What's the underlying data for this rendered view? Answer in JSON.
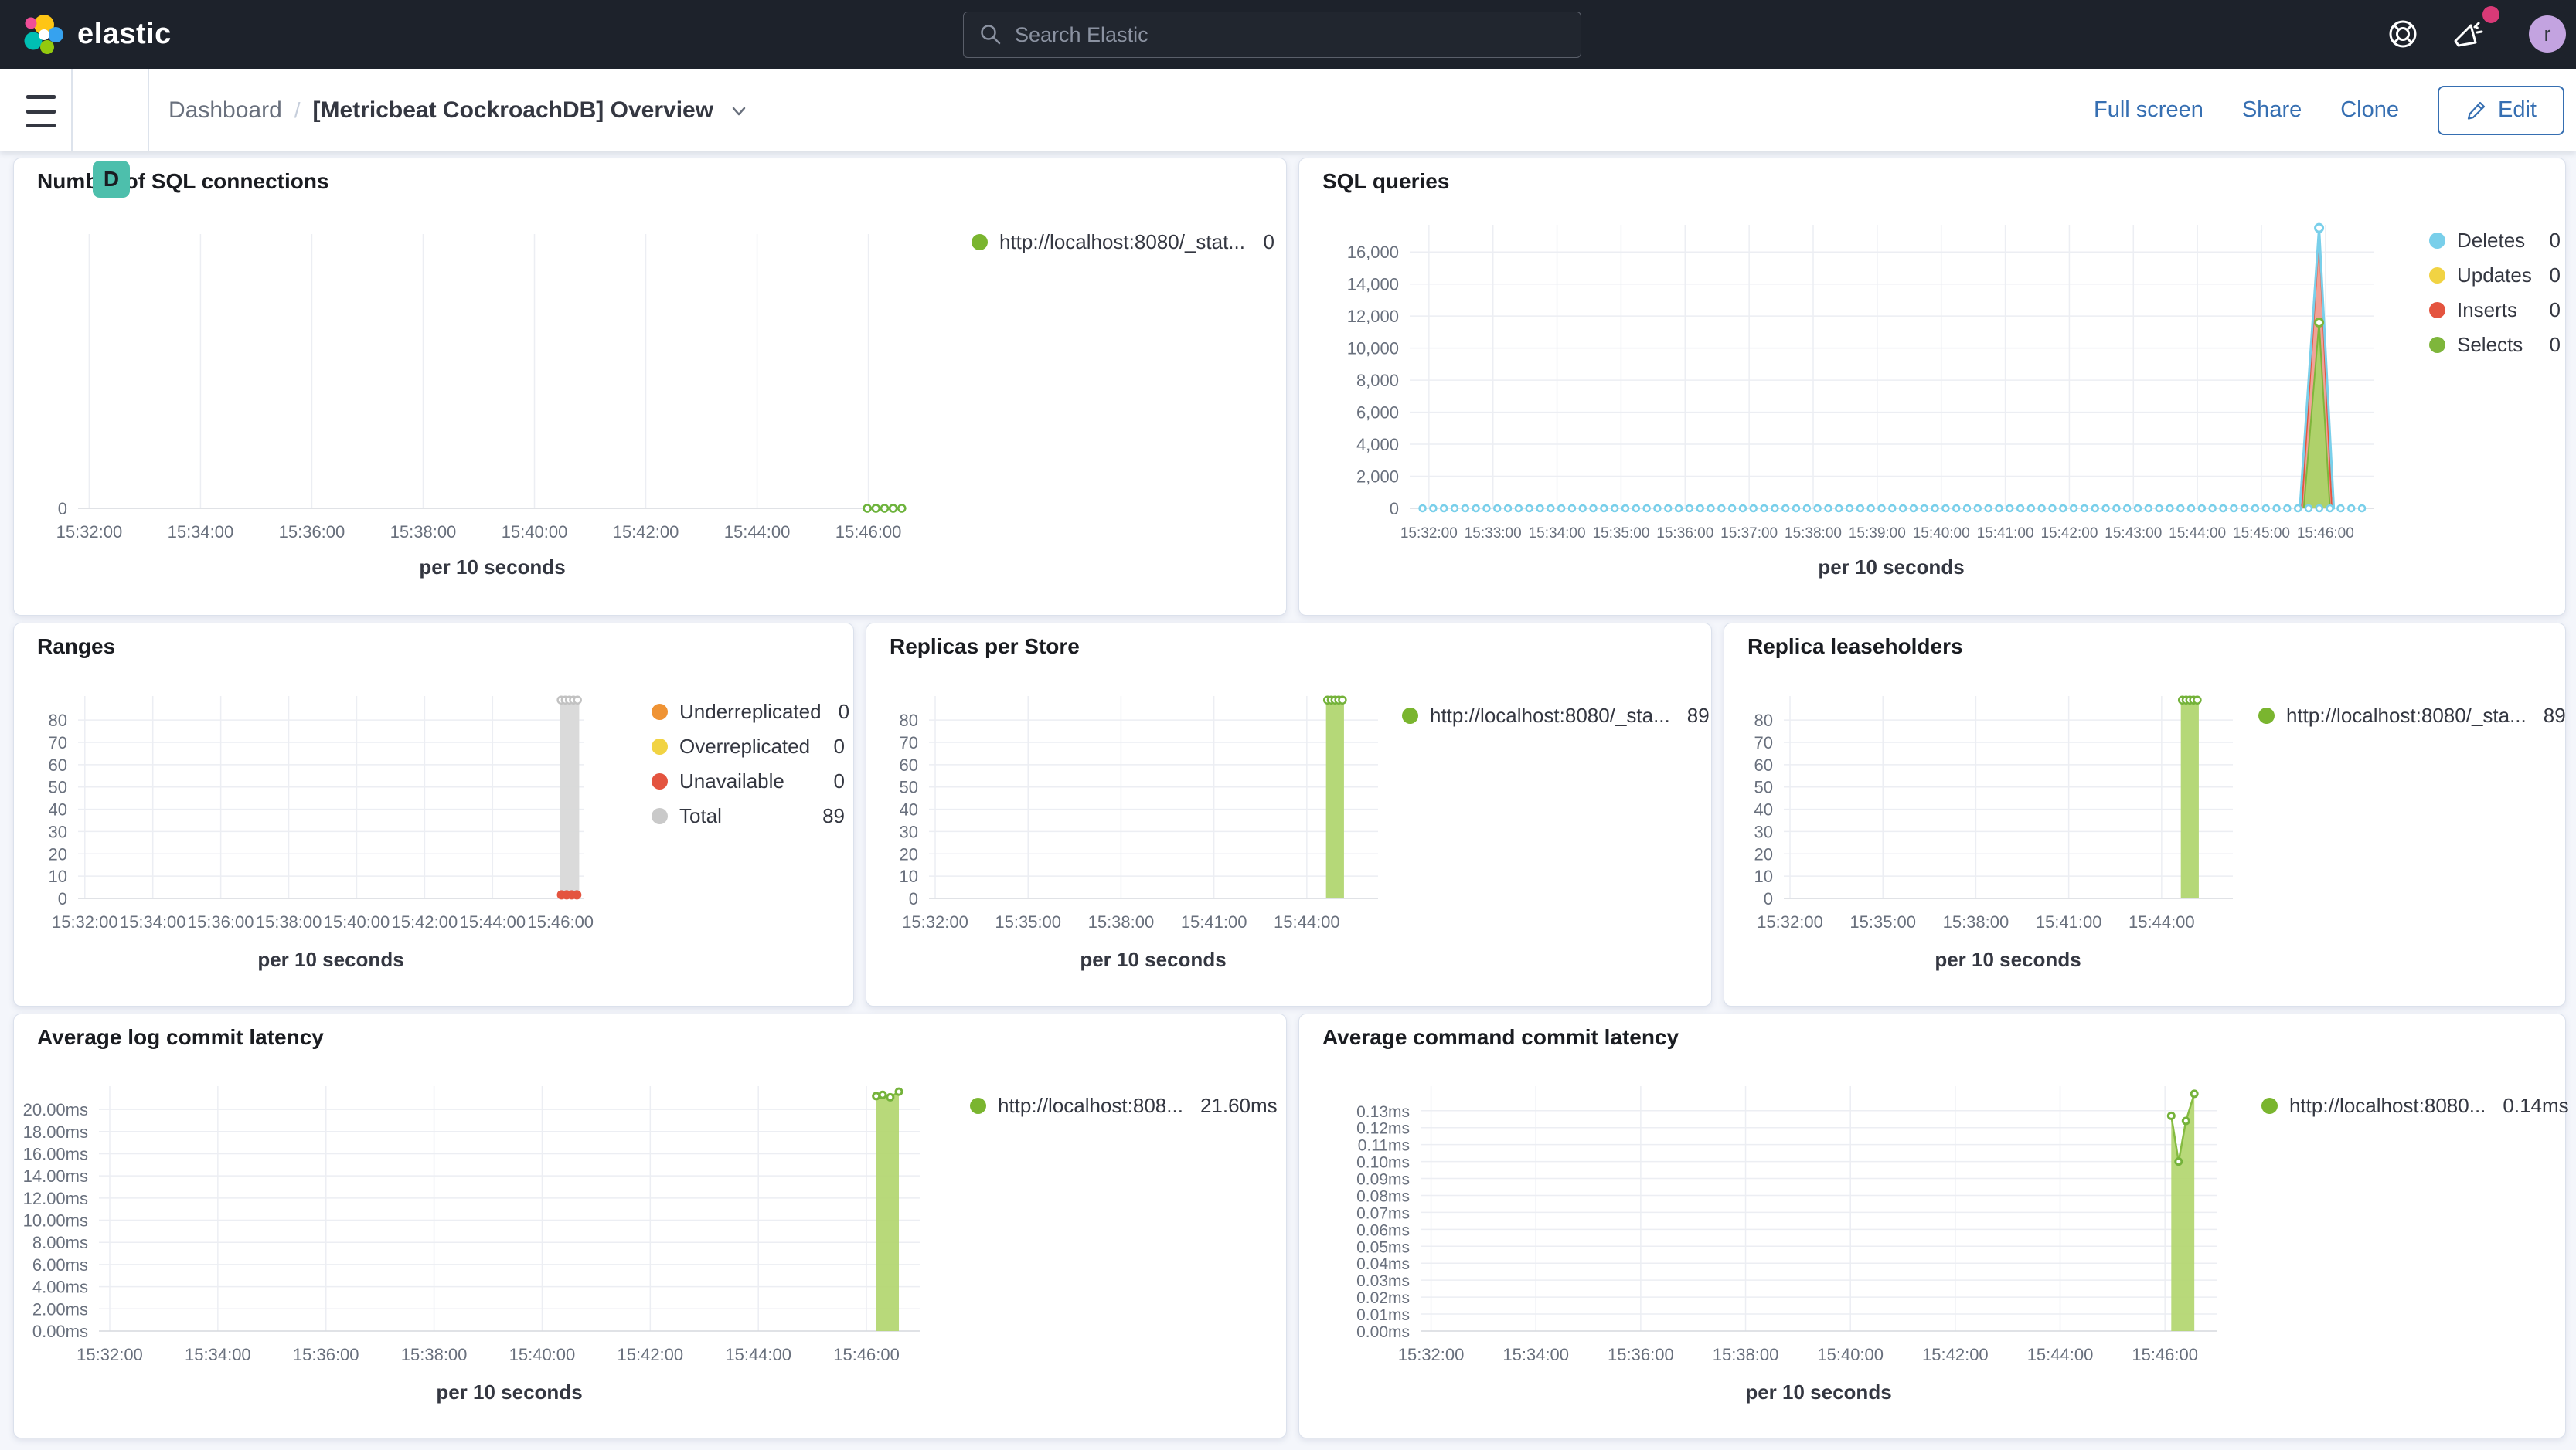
{
  "header": {
    "logo_text": "elastic",
    "search_placeholder": "Search Elastic",
    "avatar_initial": "r"
  },
  "toolbar": {
    "app_badge": "D",
    "breadcrumb_root": "Dashboard",
    "separator": "/",
    "title": "[Metricbeat CockroachDB] Overview",
    "actions": [
      "Full screen",
      "Share",
      "Clone"
    ],
    "edit_label": "Edit"
  },
  "colors": {
    "header_bg": "#1d222b",
    "link_blue": "#366fb2",
    "badge_teal": "#4dbfac",
    "green_series": "#7ab52f",
    "blue_series": "#79cfea",
    "yellow_series": "#f1d343",
    "red_series": "#e4543f",
    "orange_series": "#ef9334",
    "gray_series": "#c9c9c9"
  },
  "chart_data": [
    {
      "type": "line",
      "title": "Number of SQL connections",
      "xlabel": "per 10 seconds",
      "xdomain": [
        31.8,
        46.7
      ],
      "ydomain": [
        0,
        1
      ],
      "xticks": [
        {
          "v": 32,
          "label": "15:32:00"
        },
        {
          "v": 34,
          "label": "15:34:00"
        },
        {
          "v": 36,
          "label": "15:36:00"
        },
        {
          "v": 38,
          "label": "15:38:00"
        },
        {
          "v": 40,
          "label": "15:40:00"
        },
        {
          "v": 42,
          "label": "15:42:00"
        },
        {
          "v": 44,
          "label": "15:44:00"
        },
        {
          "v": 46,
          "label": "15:46:00"
        }
      ],
      "yticks": [
        {
          "v": 0,
          "label": "0"
        }
      ],
      "legend": [
        {
          "label": "http://localhost:8080/_stat...",
          "value": "0",
          "color": "#7ab52f"
        }
      ],
      "series": [
        {
          "type": "line",
          "color": "#6db33c",
          "width": 3.5,
          "points": [
            [
              45.98,
              0
            ],
            [
              46.6,
              0
            ]
          ]
        },
        {
          "type": "dotline",
          "color": "#6db33c",
          "y": 0,
          "from": 45.98,
          "to": 46.61,
          "step": 0.155,
          "r": 4.5,
          "hollow": true
        }
      ]
    },
    {
      "type": "line",
      "title": "SQL queries",
      "xlabel": "per 10 seconds",
      "xdomain": [
        31.7,
        46.75
      ],
      "ydomain": [
        0,
        17700
      ],
      "xticks": [
        {
          "v": 32,
          "label": "15:32:00"
        },
        {
          "v": 33,
          "label": "15:33:00"
        },
        {
          "v": 34,
          "label": "15:34:00"
        },
        {
          "v": 35,
          "label": "15:35:00"
        },
        {
          "v": 36,
          "label": "15:36:00"
        },
        {
          "v": 37,
          "label": "15:37:00"
        },
        {
          "v": 38,
          "label": "15:38:00"
        },
        {
          "v": 39,
          "label": "15:39:00"
        },
        {
          "v": 40,
          "label": "15:40:00"
        },
        {
          "v": 41,
          "label": "15:41:00"
        },
        {
          "v": 42,
          "label": "15:42:00"
        },
        {
          "v": 43,
          "label": "15:43:00"
        },
        {
          "v": 44,
          "label": "15:44:00"
        },
        {
          "v": 45,
          "label": "15:45:00"
        },
        {
          "v": 46,
          "label": "15:46:00"
        }
      ],
      "yticks": [
        {
          "v": 0,
          "label": "0"
        },
        {
          "v": 2000,
          "label": "2,000"
        },
        {
          "v": 4000,
          "label": "4,000"
        },
        {
          "v": 6000,
          "label": "6,000"
        },
        {
          "v": 8000,
          "label": "8,000"
        },
        {
          "v": 10000,
          "label": "10,000"
        },
        {
          "v": 12000,
          "label": "12,000"
        },
        {
          "v": 14000,
          "label": "14,000"
        },
        {
          "v": 16000,
          "label": "16,000"
        }
      ],
      "legend": [
        {
          "label": "Deletes",
          "value": "0",
          "color": "#79cfea"
        },
        {
          "label": "Updates",
          "value": "0",
          "color": "#f1d343"
        },
        {
          "label": "Inserts",
          "value": "0",
          "color": "#e4543f"
        },
        {
          "label": "Selects",
          "value": "0",
          "color": "#7eb63b"
        }
      ],
      "series": [
        {
          "type": "area",
          "fill": "#ee9285",
          "opacity": 0.85,
          "color": "#e4543f",
          "width": 2,
          "points": [
            [
              45.63,
              0
            ],
            [
              45.9,
              17000
            ],
            [
              46.1,
              0
            ]
          ]
        },
        {
          "type": "area",
          "fill": "#abd468",
          "opacity": 0.95,
          "color": "#7eb63b",
          "width": 2,
          "points": [
            [
              45.66,
              0
            ],
            [
              45.9,
              11600
            ],
            [
              46.07,
              0
            ]
          ]
        },
        {
          "type": "line",
          "color": "#79cfea",
          "width": 3,
          "points": [
            [
              45.6,
              0
            ],
            [
              45.9,
              17500
            ],
            [
              46.13,
              0
            ]
          ]
        },
        {
          "type": "dotline",
          "color": "#79cfea",
          "y": 0,
          "from": 31.9,
          "to": 46.62,
          "step": 0.1667,
          "r": 4,
          "hollow": true
        },
        {
          "type": "marker",
          "color": "#79cfea",
          "r": 5,
          "points": [
            [
              45.9,
              17500
            ]
          ]
        },
        {
          "type": "marker",
          "color": "#7eb63b",
          "r": 5,
          "points": [
            [
              45.9,
              11600
            ]
          ]
        }
      ]
    },
    {
      "type": "bar",
      "title": "Ranges",
      "xlabel": "per 10 seconds",
      "xdomain": [
        31.8,
        46.7
      ],
      "ydomain": [
        0,
        90.8
      ],
      "xticks": [
        {
          "v": 32,
          "label": "15:32:00"
        },
        {
          "v": 34,
          "label": "15:34:00"
        },
        {
          "v": 36,
          "label": "15:36:00"
        },
        {
          "v": 38,
          "label": "15:38:00"
        },
        {
          "v": 40,
          "label": "15:40:00"
        },
        {
          "v": 42,
          "label": "15:42:00"
        },
        {
          "v": 44,
          "label": "15:44:00"
        },
        {
          "v": 46,
          "label": "15:46:00"
        }
      ],
      "yticks": [
        {
          "v": 0,
          "label": "0"
        },
        {
          "v": 10,
          "label": "10"
        },
        {
          "v": 20,
          "label": "20"
        },
        {
          "v": 30,
          "label": "30"
        },
        {
          "v": 40,
          "label": "40"
        },
        {
          "v": 50,
          "label": "50"
        },
        {
          "v": 60,
          "label": "60"
        },
        {
          "v": 70,
          "label": "70"
        },
        {
          "v": 80,
          "label": "80"
        }
      ],
      "legend": [
        {
          "label": "Underreplicated",
          "value": "0",
          "color": "#ef9334"
        },
        {
          "label": "Overreplicated",
          "value": "0",
          "color": "#f1d343"
        },
        {
          "label": "Unavailable",
          "value": "0",
          "color": "#e4543f"
        },
        {
          "label": "Total",
          "value": "89",
          "color": "#c9c9c9"
        }
      ],
      "series": [
        {
          "type": "bar",
          "x0": 45.98,
          "x1": 46.55,
          "v": 89,
          "fill": "#d8d8d8",
          "opacity": 0.95
        },
        {
          "type": "dotline",
          "color": "#c2c2c2",
          "y": 89,
          "from": 46.02,
          "to": 46.52,
          "step": 0.12,
          "r": 4.5,
          "hollow": true
        },
        {
          "type": "dotline",
          "color": "#e4543f",
          "y": 1.6,
          "from": 46.03,
          "to": 46.49,
          "step": 0.15,
          "r": 6,
          "hollow": false
        }
      ]
    },
    {
      "type": "bar",
      "title": "Replicas per Store",
      "xlabel": "per 10 seconds",
      "xdomain": [
        31.8,
        46.3
      ],
      "ydomain": [
        0,
        90.8
      ],
      "xticks": [
        {
          "v": 32,
          "label": "15:32:00"
        },
        {
          "v": 35,
          "label": "15:35:00"
        },
        {
          "v": 38,
          "label": "15:38:00"
        },
        {
          "v": 41,
          "label": "15:41:00"
        },
        {
          "v": 44,
          "label": "15:44:00"
        }
      ],
      "yticks": [
        {
          "v": 0,
          "label": "0"
        },
        {
          "v": 10,
          "label": "10"
        },
        {
          "v": 20,
          "label": "20"
        },
        {
          "v": 30,
          "label": "30"
        },
        {
          "v": 40,
          "label": "40"
        },
        {
          "v": 50,
          "label": "50"
        },
        {
          "v": 60,
          "label": "60"
        },
        {
          "v": 70,
          "label": "70"
        },
        {
          "v": 80,
          "label": "80"
        }
      ],
      "legend": [
        {
          "label": "http://localhost:8080/_sta...",
          "value": "89",
          "color": "#7ab52f"
        }
      ],
      "series": [
        {
          "type": "bar",
          "x0": 44.62,
          "x1": 45.2,
          "v": 89,
          "fill": "#b5d878",
          "opacity": 1
        },
        {
          "type": "dotline",
          "color": "#74b23a",
          "y": 89,
          "from": 44.67,
          "to": 45.16,
          "step": 0.12,
          "r": 4.5,
          "hollow": true
        }
      ]
    },
    {
      "type": "bar",
      "title": "Replica leaseholders",
      "xlabel": "per 10 seconds",
      "xdomain": [
        31.8,
        46.3
      ],
      "ydomain": [
        0,
        90.8
      ],
      "xticks": [
        {
          "v": 32,
          "label": "15:32:00"
        },
        {
          "v": 35,
          "label": "15:35:00"
        },
        {
          "v": 38,
          "label": "15:38:00"
        },
        {
          "v": 41,
          "label": "15:41:00"
        },
        {
          "v": 44,
          "label": "15:44:00"
        }
      ],
      "yticks": [
        {
          "v": 0,
          "label": "0"
        },
        {
          "v": 10,
          "label": "10"
        },
        {
          "v": 20,
          "label": "20"
        },
        {
          "v": 30,
          "label": "30"
        },
        {
          "v": 40,
          "label": "40"
        },
        {
          "v": 50,
          "label": "50"
        },
        {
          "v": 60,
          "label": "60"
        },
        {
          "v": 70,
          "label": "70"
        },
        {
          "v": 80,
          "label": "80"
        }
      ],
      "legend": [
        {
          "label": "http://localhost:8080/_sta...",
          "value": "89",
          "color": "#7ab52f"
        }
      ],
      "series": [
        {
          "type": "bar",
          "x0": 44.62,
          "x1": 45.2,
          "v": 89,
          "fill": "#b5d878",
          "opacity": 1
        },
        {
          "type": "dotline",
          "color": "#74b23a",
          "y": 89,
          "from": 44.67,
          "to": 45.16,
          "step": 0.12,
          "r": 4.5,
          "hollow": true
        }
      ]
    },
    {
      "type": "area",
      "title": "Average log commit latency",
      "xlabel": "per 10 seconds",
      "xdomain": [
        31.8,
        47.0
      ],
      "ydomain": [
        0,
        22.1
      ],
      "xticks": [
        {
          "v": 32,
          "label": "15:32:00"
        },
        {
          "v": 34,
          "label": "15:34:00"
        },
        {
          "v": 36,
          "label": "15:36:00"
        },
        {
          "v": 38,
          "label": "15:38:00"
        },
        {
          "v": 40,
          "label": "15:40:00"
        },
        {
          "v": 42,
          "label": "15:42:00"
        },
        {
          "v": 44,
          "label": "15:44:00"
        },
        {
          "v": 46,
          "label": "15:46:00"
        }
      ],
      "yticks": [
        {
          "v": 0,
          "label": "0.00ms"
        },
        {
          "v": 2,
          "label": "2.00ms"
        },
        {
          "v": 4,
          "label": "4.00ms"
        },
        {
          "v": 6,
          "label": "6.00ms"
        },
        {
          "v": 8,
          "label": "8.00ms"
        },
        {
          "v": 10,
          "label": "10.00ms"
        },
        {
          "v": 12,
          "label": "12.00ms"
        },
        {
          "v": 14,
          "label": "14.00ms"
        },
        {
          "v": 16,
          "label": "16.00ms"
        },
        {
          "v": 18,
          "label": "18.00ms"
        },
        {
          "v": 20,
          "label": "20.00ms"
        }
      ],
      "legend": [
        {
          "label": "http://localhost:808...",
          "value": "21.60ms",
          "color": "#7ab52f"
        }
      ],
      "series": [
        {
          "type": "area",
          "fill": "#b2d66f",
          "opacity": 0.92,
          "color": "#85bb41",
          "width": 2.5,
          "points": [
            [
              46.18,
              21.2
            ],
            [
              46.3,
              21.32
            ],
            [
              46.44,
              21.1
            ],
            [
              46.6,
              21.6
            ]
          ]
        },
        {
          "type": "marker",
          "color": "#74b23a",
          "r": 4,
          "points": [
            [
              46.18,
              21.2
            ],
            [
              46.3,
              21.32
            ],
            [
              46.44,
              21.1
            ],
            [
              46.6,
              21.6
            ]
          ]
        }
      ]
    },
    {
      "type": "area",
      "title": "Average command commit latency",
      "xlabel": "per 10 seconds",
      "xdomain": [
        31.8,
        47.0
      ],
      "ydomain": [
        0,
        0.1445
      ],
      "xticks": [
        {
          "v": 32,
          "label": "15:32:00"
        },
        {
          "v": 34,
          "label": "15:34:00"
        },
        {
          "v": 36,
          "label": "15:36:00"
        },
        {
          "v": 38,
          "label": "15:38:00"
        },
        {
          "v": 40,
          "label": "15:40:00"
        },
        {
          "v": 42,
          "label": "15:42:00"
        },
        {
          "v": 44,
          "label": "15:44:00"
        },
        {
          "v": 46,
          "label": "15:46:00"
        }
      ],
      "yticks": [
        {
          "v": 0.0,
          "label": "0.00ms"
        },
        {
          "v": 0.01,
          "label": "0.01ms"
        },
        {
          "v": 0.02,
          "label": "0.02ms"
        },
        {
          "v": 0.03,
          "label": "0.03ms"
        },
        {
          "v": 0.04,
          "label": "0.04ms"
        },
        {
          "v": 0.05,
          "label": "0.05ms"
        },
        {
          "v": 0.06,
          "label": "0.06ms"
        },
        {
          "v": 0.07,
          "label": "0.07ms"
        },
        {
          "v": 0.08,
          "label": "0.08ms"
        },
        {
          "v": 0.09,
          "label": "0.09ms"
        },
        {
          "v": 0.1,
          "label": "0.10ms"
        },
        {
          "v": 0.11,
          "label": "0.11ms"
        },
        {
          "v": 0.12,
          "label": "0.12ms"
        },
        {
          "v": 0.13,
          "label": "0.13ms"
        }
      ],
      "legend": [
        {
          "label": "http://localhost:8080...",
          "value": "0.14ms",
          "color": "#7ab52f"
        }
      ],
      "series": [
        {
          "type": "area",
          "fill": "#b2d66f",
          "opacity": 0.92,
          "color": "#85bb41",
          "width": 2.5,
          "points": [
            [
              46.12,
              0.127
            ],
            [
              46.26,
              0.1
            ],
            [
              46.4,
              0.124
            ],
            [
              46.56,
              0.14
            ]
          ]
        },
        {
          "type": "marker",
          "color": "#74b23a",
          "r": 4,
          "points": [
            [
              46.12,
              0.127
            ],
            [
              46.26,
              0.1
            ],
            [
              46.4,
              0.124
            ],
            [
              46.56,
              0.14
            ]
          ]
        }
      ]
    }
  ]
}
